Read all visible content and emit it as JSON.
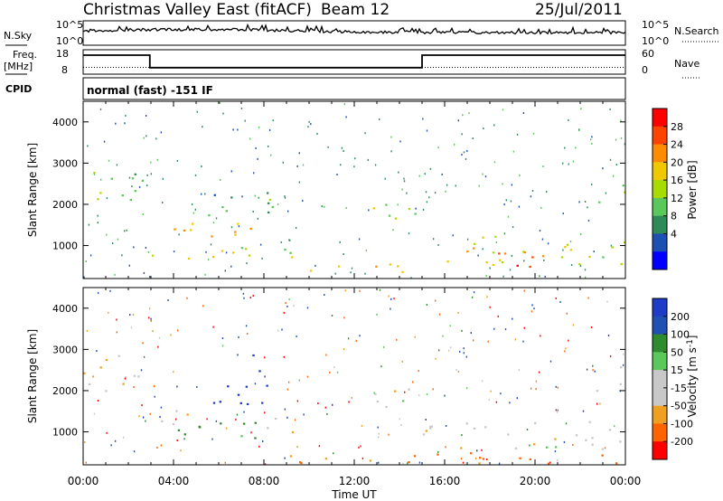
{
  "header": {
    "title": "Christmas Valley East (fitACF)",
    "beam": "Beam 12",
    "date": "25/Jul/2011"
  },
  "top_panels": {
    "nsky_label": "N.Sky",
    "nsky_ticks": [
      "10^5",
      "10^0"
    ],
    "nsearch_label": "N.Search",
    "nsearch_ticks": [
      "10^5",
      "10^0"
    ],
    "freq_label": "Freq.",
    "freq_unit": "[MHz]",
    "freq_ticks": [
      "18",
      "8"
    ],
    "nave_label": "Nave",
    "nave_ticks": [
      "60",
      "0"
    ],
    "cpid_label": "CPID",
    "cpid_text": "normal (fast) -151 IF",
    "freq_series": {
      "x_hours": [
        0,
        2.95,
        2.95,
        15.0,
        15.0,
        24
      ],
      "y_mhz": [
        16,
        16,
        10.5,
        10.5,
        16,
        16
      ]
    },
    "nave_level": 18
  },
  "power_panel": {
    "ylabel": "Slant Range [km]",
    "yticks": [
      "4000",
      "3000",
      "2000",
      "1000"
    ],
    "ytick_values": [
      4000,
      3000,
      2000,
      1000
    ],
    "ylim": [
      200,
      4500
    ],
    "colorbar_label": "Power [dB]",
    "colorbar_ticks": [
      "28",
      "24",
      "20",
      "16",
      "12",
      "8",
      "4"
    ],
    "colorbar_colors": [
      "#ff0000",
      "#ff4400",
      "#ff8c00",
      "#f0c800",
      "#a8dc00",
      "#5cc85c",
      "#2e8b57",
      "#1e50b4",
      "#0000ff"
    ]
  },
  "velocity_panel": {
    "ylabel": "Slant Range [km]",
    "yticks": [
      "4000",
      "3000",
      "2000",
      "1000"
    ],
    "ytick_values": [
      4000,
      3000,
      2000,
      1000
    ],
    "ylim": [
      200,
      4500
    ],
    "colorbar_label": "Velocity [m s",
    "colorbar_label_sup": "-1",
    "colorbar_label_end": "]",
    "colorbar_ticks": [
      "200",
      "100",
      "50",
      "15",
      "-15",
      "-50",
      "-100",
      "-200"
    ],
    "colorbar_colors": [
      "#1e3cc8",
      "#2050b4",
      "#2e8b2e",
      "#5cc85c",
      "#c8c8c8",
      "#c8c8c8",
      "#f0a020",
      "#ff6400",
      "#ff0000"
    ]
  },
  "x_axis": {
    "label": "Time UT",
    "ticks": [
      "00:00",
      "04:00",
      "08:00",
      "12:00",
      "16:00",
      "20:00",
      "00:00"
    ],
    "tick_hours": [
      0,
      4,
      8,
      12,
      16,
      20,
      24
    ]
  },
  "chart_data": {
    "type": "heatmap",
    "x_range_hours": [
      0,
      24
    ],
    "y_range_km": [
      200,
      4500
    ],
    "power_regions": [
      {
        "t0": 0.0,
        "t1": 2.6,
        "r0": 1950,
        "r1": 2900,
        "db": 12
      },
      {
        "t0": 3.0,
        "t1": 7.5,
        "r0": 1200,
        "r1": 1700,
        "db": 22
      },
      {
        "t0": 3.0,
        "t1": 9.5,
        "r0": 650,
        "r1": 1100,
        "db": 18
      },
      {
        "t0": 5.5,
        "t1": 8.8,
        "r0": 1500,
        "r1": 2300,
        "db": 10
      },
      {
        "t0": 10.0,
        "t1": 16.0,
        "r0": 350,
        "r1": 600,
        "db": 20
      },
      {
        "t0": 12.5,
        "t1": 15.2,
        "r0": 1600,
        "r1": 2200,
        "db": 14
      },
      {
        "t0": 15.0,
        "t1": 24.0,
        "r0": 550,
        "r1": 1250,
        "db": 18
      },
      {
        "t0": 17.5,
        "t1": 20.5,
        "r0": 500,
        "r1": 900,
        "db": 26
      },
      {
        "t0": 22.5,
        "t1": 24.0,
        "r0": 2000,
        "r1": 2600,
        "db": 14
      }
    ],
    "velocity_regions": [
      {
        "t0": 0.0,
        "t1": 2.6,
        "r0": 1950,
        "r1": 2900,
        "v": 0
      },
      {
        "t0": 3.0,
        "t1": 5.0,
        "r0": 1100,
        "r1": 1600,
        "v": 0
      },
      {
        "t0": 4.0,
        "t1": 7.8,
        "r0": 700,
        "r1": 1300,
        "v": 40
      },
      {
        "t0": 5.5,
        "t1": 8.5,
        "r0": 1400,
        "r1": 2200,
        "v": 150
      },
      {
        "t0": 7.3,
        "t1": 8.0,
        "r0": 2300,
        "r1": 2900,
        "v": 160
      },
      {
        "t0": 8.0,
        "t1": 9.5,
        "r0": 800,
        "r1": 1400,
        "v": 0
      },
      {
        "t0": 9.0,
        "t1": 16.0,
        "r0": 250,
        "r1": 550,
        "v": -60
      },
      {
        "t0": 12.5,
        "t1": 15.2,
        "r0": 1600,
        "r1": 2200,
        "v": 0
      },
      {
        "t0": 15.0,
        "t1": 24.0,
        "r0": 600,
        "r1": 1300,
        "v": 0
      },
      {
        "t0": 16.0,
        "t1": 24.0,
        "r0": 250,
        "r1": 550,
        "v": -60
      },
      {
        "t0": 22.5,
        "t1": 24.0,
        "r0": 2000,
        "r1": 2600,
        "v": 0
      }
    ]
  }
}
